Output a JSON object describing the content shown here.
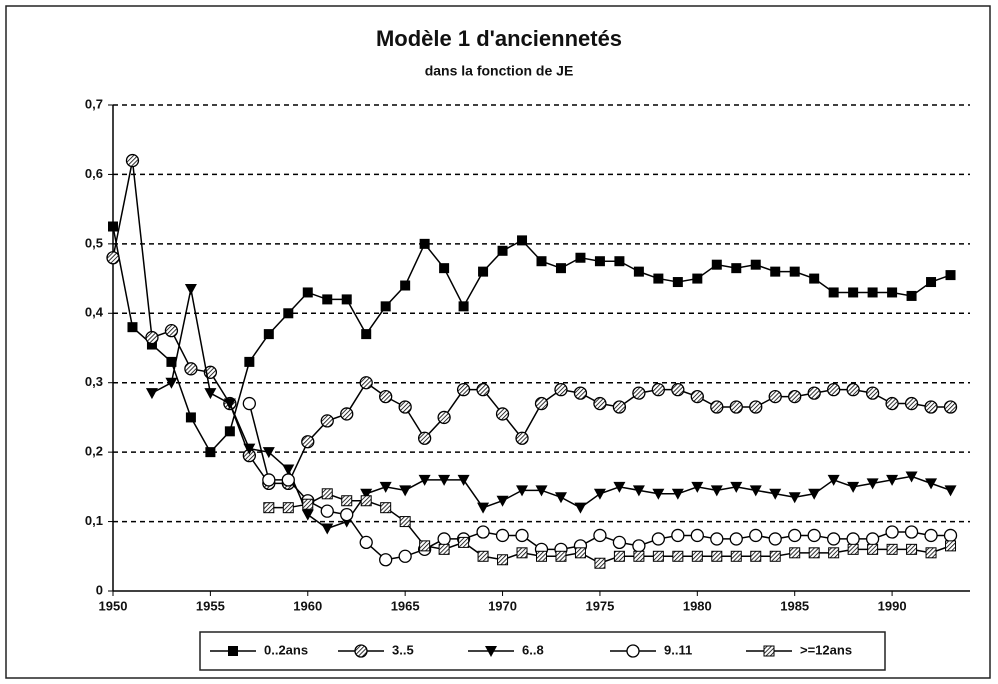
{
  "chart_data": {
    "type": "line",
    "title": "Modèle 1 d'anciennetés",
    "subtitle": "dans la fonction de JE",
    "x": [
      1950,
      1951,
      1952,
      1953,
      1954,
      1955,
      1956,
      1957,
      1958,
      1959,
      1960,
      1961,
      1962,
      1963,
      1964,
      1965,
      1966,
      1967,
      1968,
      1969,
      1970,
      1971,
      1972,
      1973,
      1974,
      1975,
      1976,
      1977,
      1978,
      1979,
      1980,
      1981,
      1982,
      1983,
      1984,
      1985,
      1986,
      1987,
      1988,
      1989,
      1990,
      1991,
      1992,
      1993
    ],
    "series": [
      {
        "name": "0..2ans",
        "color": "#000000",
        "marker": "square",
        "values": [
          0.525,
          0.38,
          0.355,
          0.33,
          0.25,
          0.2,
          0.23,
          0.33,
          0.37,
          0.4,
          0.43,
          0.42,
          0.42,
          0.37,
          0.41,
          0.44,
          0.5,
          0.465,
          0.41,
          0.46,
          0.49,
          0.505,
          0.475,
          0.465,
          0.48,
          0.475,
          0.475,
          0.46,
          0.45,
          0.445,
          0.45,
          0.47,
          0.465,
          0.47,
          0.46,
          0.46,
          0.45,
          0.43,
          0.43,
          0.43,
          0.43,
          0.425,
          0.445,
          0.455
        ]
      },
      {
        "name": "3..5",
        "color": "#000000",
        "marker": "circle-hatched",
        "values": [
          0.48,
          0.62,
          0.365,
          0.375,
          0.32,
          0.315,
          0.27,
          0.195,
          0.155,
          0.155,
          0.215,
          0.245,
          0.255,
          0.3,
          0.28,
          0.265,
          0.22,
          0.25,
          0.29,
          0.29,
          0.255,
          0.22,
          0.27,
          0.29,
          0.285,
          0.27,
          0.265,
          0.285,
          0.29,
          0.29,
          0.28,
          0.265,
          0.265,
          0.265,
          0.28,
          0.28,
          0.285,
          0.29,
          0.29,
          0.285,
          0.27,
          0.27,
          0.265,
          0.265
        ]
      },
      {
        "name": "6..8",
        "color": "#000000",
        "marker": "triangle-down",
        "values": [
          null,
          null,
          0.285,
          0.3,
          0.435,
          0.285,
          0.27,
          0.205,
          0.2,
          0.175,
          0.11,
          0.09,
          0.1,
          0.14,
          0.15,
          0.145,
          0.16,
          0.16,
          0.16,
          0.12,
          0.13,
          0.145,
          0.145,
          0.135,
          0.12,
          0.14,
          0.15,
          0.145,
          0.14,
          0.14,
          0.15,
          0.145,
          0.15,
          0.145,
          0.14,
          0.135,
          0.14,
          0.16,
          0.15,
          0.155,
          0.16,
          0.165,
          0.155,
          0.145
        ]
      },
      {
        "name": "9..11",
        "color": "#000000",
        "marker": "circle",
        "values": [
          null,
          null,
          null,
          null,
          null,
          null,
          null,
          0.27,
          0.16,
          0.16,
          0.13,
          0.115,
          0.11,
          0.07,
          0.045,
          0.05,
          0.06,
          0.075,
          0.075,
          0.085,
          0.08,
          0.08,
          0.06,
          0.06,
          0.065,
          0.08,
          0.07,
          0.065,
          0.075,
          0.08,
          0.08,
          0.075,
          0.075,
          0.08,
          0.075,
          0.08,
          0.08,
          0.075,
          0.075,
          0.075,
          0.085,
          0.085,
          0.08,
          0.08
        ]
      },
      {
        "name": ">=12ans",
        "color": "#000000",
        "marker": "square-hatched",
        "values": [
          null,
          null,
          null,
          null,
          null,
          null,
          null,
          null,
          0.12,
          0.12,
          0.125,
          0.14,
          0.13,
          0.13,
          0.12,
          0.1,
          0.065,
          0.06,
          0.07,
          0.05,
          0.045,
          0.055,
          0.05,
          0.05,
          0.055,
          0.04,
          0.05,
          0.05,
          0.05,
          0.05,
          0.05,
          0.05,
          0.05,
          0.05,
          0.05,
          0.055,
          0.055,
          0.055,
          0.06,
          0.06,
          0.06,
          0.06,
          0.055,
          0.065
        ]
      }
    ],
    "xlim": [
      1950,
      1994
    ],
    "xticks": [
      1950,
      1955,
      1960,
      1965,
      1970,
      1975,
      1980,
      1985,
      1990
    ],
    "ylim": [
      0,
      0.7
    ],
    "yticks": [
      0,
      {
        "value": 0.1,
        "label": "0,1"
      },
      {
        "value": 0.2,
        "label": "0,2"
      },
      {
        "value": 0.3,
        "label": "0,3"
      },
      {
        "value": 0.4,
        "label": "0,4"
      },
      {
        "value": 0.5,
        "label": "0,5"
      },
      {
        "value": 0.6,
        "label": "0,6"
      },
      {
        "value": 0.7,
        "label": "0,7"
      }
    ],
    "grid": true,
    "legend": "bottom"
  }
}
